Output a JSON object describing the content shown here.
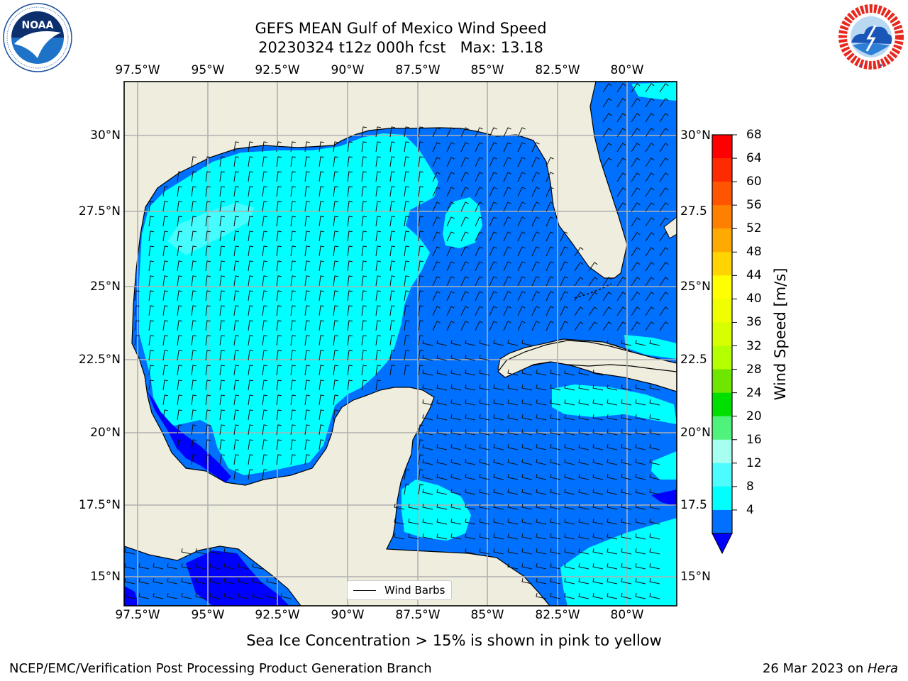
{
  "title": {
    "line1": "GEFS MEAN Gulf of Mexico Wind Speed",
    "line2": "20230324 t12z 000h fcst   Max: 13.18"
  },
  "logos": {
    "left": {
      "name": "NOAA",
      "ring_text": "NATIONAL OCEANIC AND ATMOSPHERIC ADMINISTRATION · U.S. DEPARTMENT OF COMMERCE"
    },
    "right": {
      "name": "NATIONAL WEATHER SERVICE"
    }
  },
  "map": {
    "lon_ticks": [
      "97.5°W",
      "95°W",
      "92.5°W",
      "90°W",
      "87.5°W",
      "85°W",
      "82.5°W",
      "80°W"
    ],
    "lat_ticks_left": [
      "30°N",
      "27.5°N",
      "25°N",
      "22.5°N",
      "20°N",
      "17.5°N",
      "15°N"
    ],
    "lat_ticks_right": [
      "30°N",
      "27.5",
      "25°N",
      "22.5",
      "20°N",
      "17.5",
      "15°N"
    ],
    "lon_range": [
      -98,
      -78.2
    ],
    "lat_range": [
      14.05,
      31.7
    ],
    "grid": true,
    "land_color": "#efedde",
    "legend": {
      "label": "Wind Barbs",
      "placement": "lower-center"
    }
  },
  "colorbar": {
    "label": "Wind Speed [m/s]",
    "ticks": [
      "68",
      "64",
      "60",
      "56",
      "52",
      "48",
      "44",
      "40",
      "36",
      "32",
      "28",
      "24",
      "20",
      "16",
      "12",
      "8",
      "4"
    ],
    "colors": [
      "#ff0000",
      "#ff2b00",
      "#ff5500",
      "#ff8000",
      "#ffaa00",
      "#ffd400",
      "#ffff00",
      "#f0ff00",
      "#d8ff00",
      "#b4ff00",
      "#6fe600",
      "#00e000",
      "#4ff27a",
      "#a6fff0",
      "#4cfcff",
      "#00ffff",
      "#0070ff"
    ],
    "under_color": "#0000ff"
  },
  "caption": "Sea Ice Concentration > 15% is shown in pink to yellow",
  "footer": {
    "left": "NCEP/EMC/Verification Post Processing Product Generation Branch",
    "date": "26 Mar 2023 on ",
    "machine": "Hera"
  }
}
